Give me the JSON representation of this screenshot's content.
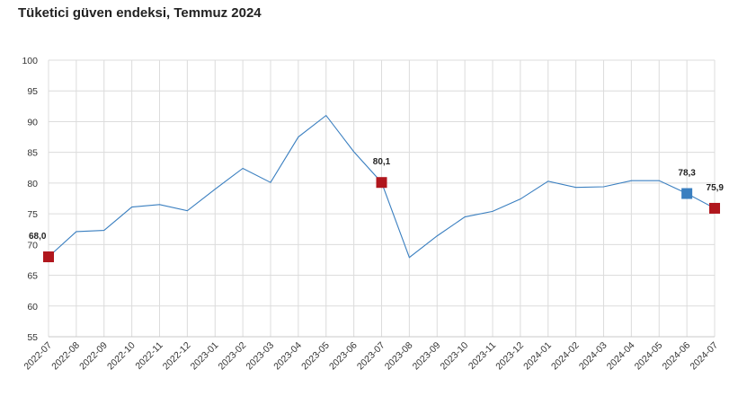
{
  "chart_data": {
    "type": "line",
    "title": "Tüketici güven endeksi, Temmuz 2024",
    "xlabel": "",
    "ylabel": "",
    "ylim": [
      55,
      100
    ],
    "yticks": [
      55,
      60,
      65,
      70,
      75,
      80,
      85,
      90,
      95,
      100
    ],
    "grid": true,
    "legend": "none",
    "line_color": "#3a7fc0",
    "marker_color_red": "#b0161d",
    "marker_color_blue": "#3a7fc0",
    "categories": [
      "2022-07",
      "2022-08",
      "2022-09",
      "2022-10",
      "2022-11",
      "2022-12",
      "2023-01",
      "2023-02",
      "2023-03",
      "2023-04",
      "2023-05",
      "2023-06",
      "2023-07",
      "2023-08",
      "2023-09",
      "2023-10",
      "2023-11",
      "2023-12",
      "2024-01",
      "2024-02",
      "2024-03",
      "2024-04",
      "2024-05",
      "2024-06",
      "2024-07"
    ],
    "series": [
      {
        "name": "",
        "values": [
          68.0,
          72.1,
          72.3,
          76.1,
          76.5,
          75.5,
          79.0,
          82.4,
          80.1,
          87.5,
          91.0,
          85.1,
          80.1,
          67.9,
          71.4,
          74.5,
          75.4,
          77.4,
          80.3,
          79.3,
          79.4,
          80.4,
          80.4,
          78.3,
          75.9
        ]
      }
    ],
    "highlighted_points": [
      {
        "category": "2022-07",
        "value": 68.0,
        "label": "68,0",
        "color": "#b0161d"
      },
      {
        "category": "2023-07",
        "value": 80.1,
        "label": "80,1",
        "color": "#b0161d"
      },
      {
        "category": "2024-06",
        "value": 78.3,
        "label": "78,3",
        "color": "#3a7fc0"
      },
      {
        "category": "2024-07",
        "value": 75.9,
        "label": "75,9",
        "color": "#b0161d"
      }
    ]
  }
}
